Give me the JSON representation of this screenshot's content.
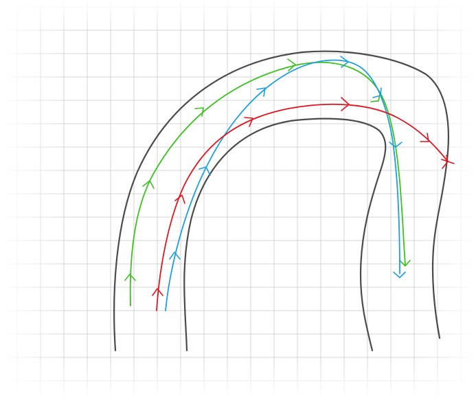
{
  "colors": {
    "background": "#ffffff",
    "grid": "#c9c9c9",
    "road": "#4a4a4a",
    "path_green": "#3cc21e",
    "path_blue": "#1a9fe0",
    "path_red": "#e0141e"
  },
  "paths": [
    {
      "id": "green",
      "color": "#3cc21e"
    },
    {
      "id": "blue",
      "color": "#1a9fe0"
    },
    {
      "id": "red",
      "color": "#e0141e"
    }
  ]
}
